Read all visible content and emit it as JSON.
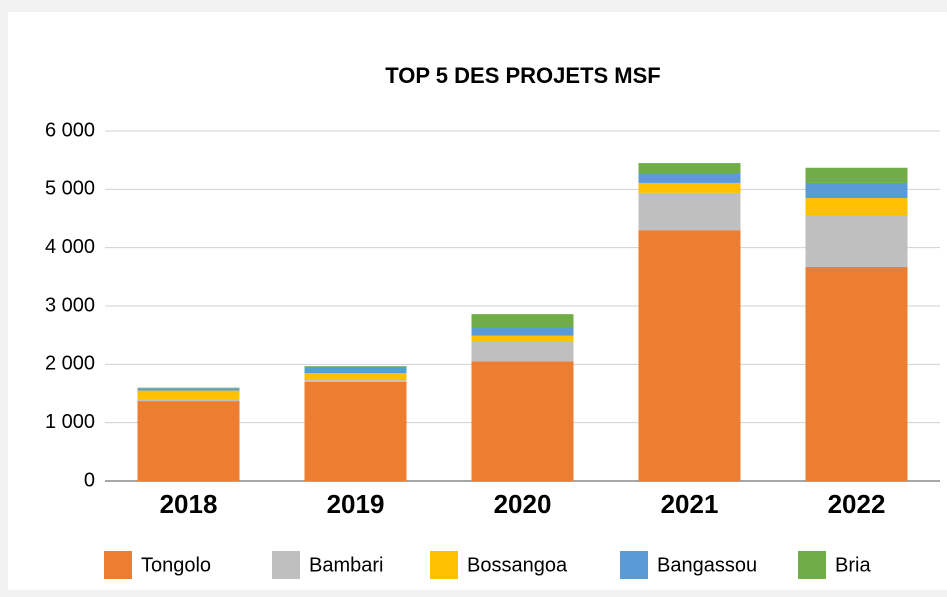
{
  "chart_data": {
    "type": "bar",
    "stacked": true,
    "title": "TOP 5 DES PROJETS MSF",
    "categories": [
      "2018",
      "2019",
      "2020",
      "2021",
      "2022"
    ],
    "series": [
      {
        "name": "Tongolo",
        "color": "#ed7d31",
        "values": [
          1370,
          1700,
          2050,
          4300,
          3670
        ]
      },
      {
        "name": "Bambari",
        "color": "#bfbfbf",
        "values": [
          20,
          30,
          350,
          640,
          890
        ]
      },
      {
        "name": "Bossangoa",
        "color": "#ffc000",
        "values": [
          160,
          120,
          90,
          170,
          290
        ]
      },
      {
        "name": "Bangassou",
        "color": "#5b9bd5",
        "values": [
          40,
          110,
          150,
          170,
          260
        ]
      },
      {
        "name": "Bria",
        "color": "#70ad47",
        "values": [
          10,
          10,
          220,
          170,
          260
        ]
      }
    ],
    "ylim": [
      0,
      6000
    ],
    "yticks": [
      0,
      {
        "value": 1000,
        "label": "1 000"
      },
      {
        "value": 2000,
        "label": "2 000"
      },
      {
        "value": 3000,
        "label": "3 000"
      },
      {
        "value": 4000,
        "label": "4 000"
      },
      {
        "value": 5000,
        "label": "5 000"
      },
      {
        "value": 6000,
        "label": "6 000"
      }
    ],
    "grid": true,
    "legend": "bottom"
  }
}
